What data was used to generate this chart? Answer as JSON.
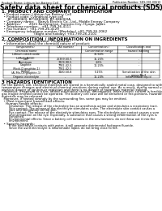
{
  "bg_color": "#ffffff",
  "header_top_left": "Product Name: Lithium Ion Battery Cell",
  "header_top_right": "Publication Number: SDS-001-00610\nEstablished / Revision: Dec.7.2019",
  "title": "Safety data sheet for chemical products (SDS)",
  "section1_title": "1. PRODUCT AND COMPANY IDENTIFICATION",
  "section1_lines": [
    "  • Product name: Lithium Ion Battery Cell",
    "  • Product code: Cylindrical-type cell",
    "      BF-686060J, BF-686060J, BF-686060A",
    "  • Company name:    Banyu Electric Co., Ltd., Middle Energy Company",
    "  • Address:        2021 Kamimarian, Sumoto-City, Hyogo, Japan",
    "  • Telephone number:   +81-799-26-4111",
    "  • Fax number:  +81-799-26-4129",
    "  • Emergency telephone number (Weekday) +81-799-26-2062",
    "                                (Night and holiday) +81-799-26-2101"
  ],
  "section2_title": "2. COMPOSITION / INFORMATION ON INGREDIENTS",
  "section2_intro": "  • Substance or preparation: Preparation",
  "section2_sub": "  • Information about the chemical nature of product:",
  "table_col_header": "Chemical name",
  "table_headers": [
    "Component(s)",
    "CAS number",
    "Concentration /\nConcentration range",
    "Classification and\nhazard labeling"
  ],
  "table_rows": [
    [
      "Lithium cobalt oxide\n(LiMnCoNiO2)",
      "-",
      "30-60%",
      ""
    ],
    [
      "Iron",
      "26389-60-6",
      "16-26%",
      "-"
    ],
    [
      "Aluminum",
      "7429-90-5",
      "2-6%",
      "-"
    ],
    [
      "Graphite\n(Rock-D graphite-1)\n(Al-Mn-Co graphite-1)",
      "7782-42-5\n7782-42-5",
      "10-25%",
      "-"
    ],
    [
      "Copper",
      "7440-50-8",
      "5-15%",
      "Sensitization of the skin\ngroup No.2"
    ],
    [
      "Organic electrolyte",
      "-",
      "10-20%",
      "Inflammable liquid"
    ]
  ],
  "section3_title": "3 HAZARDS IDENTIFICATION",
  "section3_lines": [
    "For the battery cell, chemical materials are stored in a hermetically sealed metal case, designed to withstand",
    "temperature changes and electrical-chemical reactions during normal use. As a result, during normal use, there is no",
    "physical danger of ignition or explosion and there is no danger of hazardous material leakage.",
    "  However, if exposed to a fire, added mechanical shocks, decomposes, when electric current is forcibly run, the",
    "gas maybe emitted cannot be operated. The battery cell case will be breached or fire-portions, hazardous",
    "materials may be released.",
    "  Moreover, if heated strongly by the surrounding fire, some gas may be emitted."
  ],
  "section3_bullet1": "  • Most important hazard and effects:",
  "section3_human": "    Human health effects:",
  "section3_human_lines": [
    "        Inhalation: The release of the electrolyte has an anesthesia action and stimulates a respiratory tract.",
    "        Skin contact: The release of the electrolyte stimulates a skin. The electrolyte skin contact causes a",
    "        sore and stimulation on the skin.",
    "        Eye contact: The release of the electrolyte stimulates eyes. The electrolyte eye contact causes a sore",
    "        and stimulation on the eye. Especially, a substance that causes a strong inflammation of the eyes is",
    "        contained.",
    "        Environmental effects: Since a battery cell remains in the environment, do not throw out it into the",
    "        environment."
  ],
  "section3_specific": "  • Specific hazards:",
  "section3_specific_lines": [
    "        If the electrolyte contacts with water, it will generate detrimental hydrogen fluoride.",
    "        Since the used electrolyte is inflammable liquid, do not bring close to fire."
  ],
  "text_color": "#000000",
  "line_color": "#000000",
  "hdr_fs": 2.5,
  "title_fs": 5.5,
  "sec_fs": 4.0,
  "body_fs": 3.0,
  "tbl_fs": 2.4
}
